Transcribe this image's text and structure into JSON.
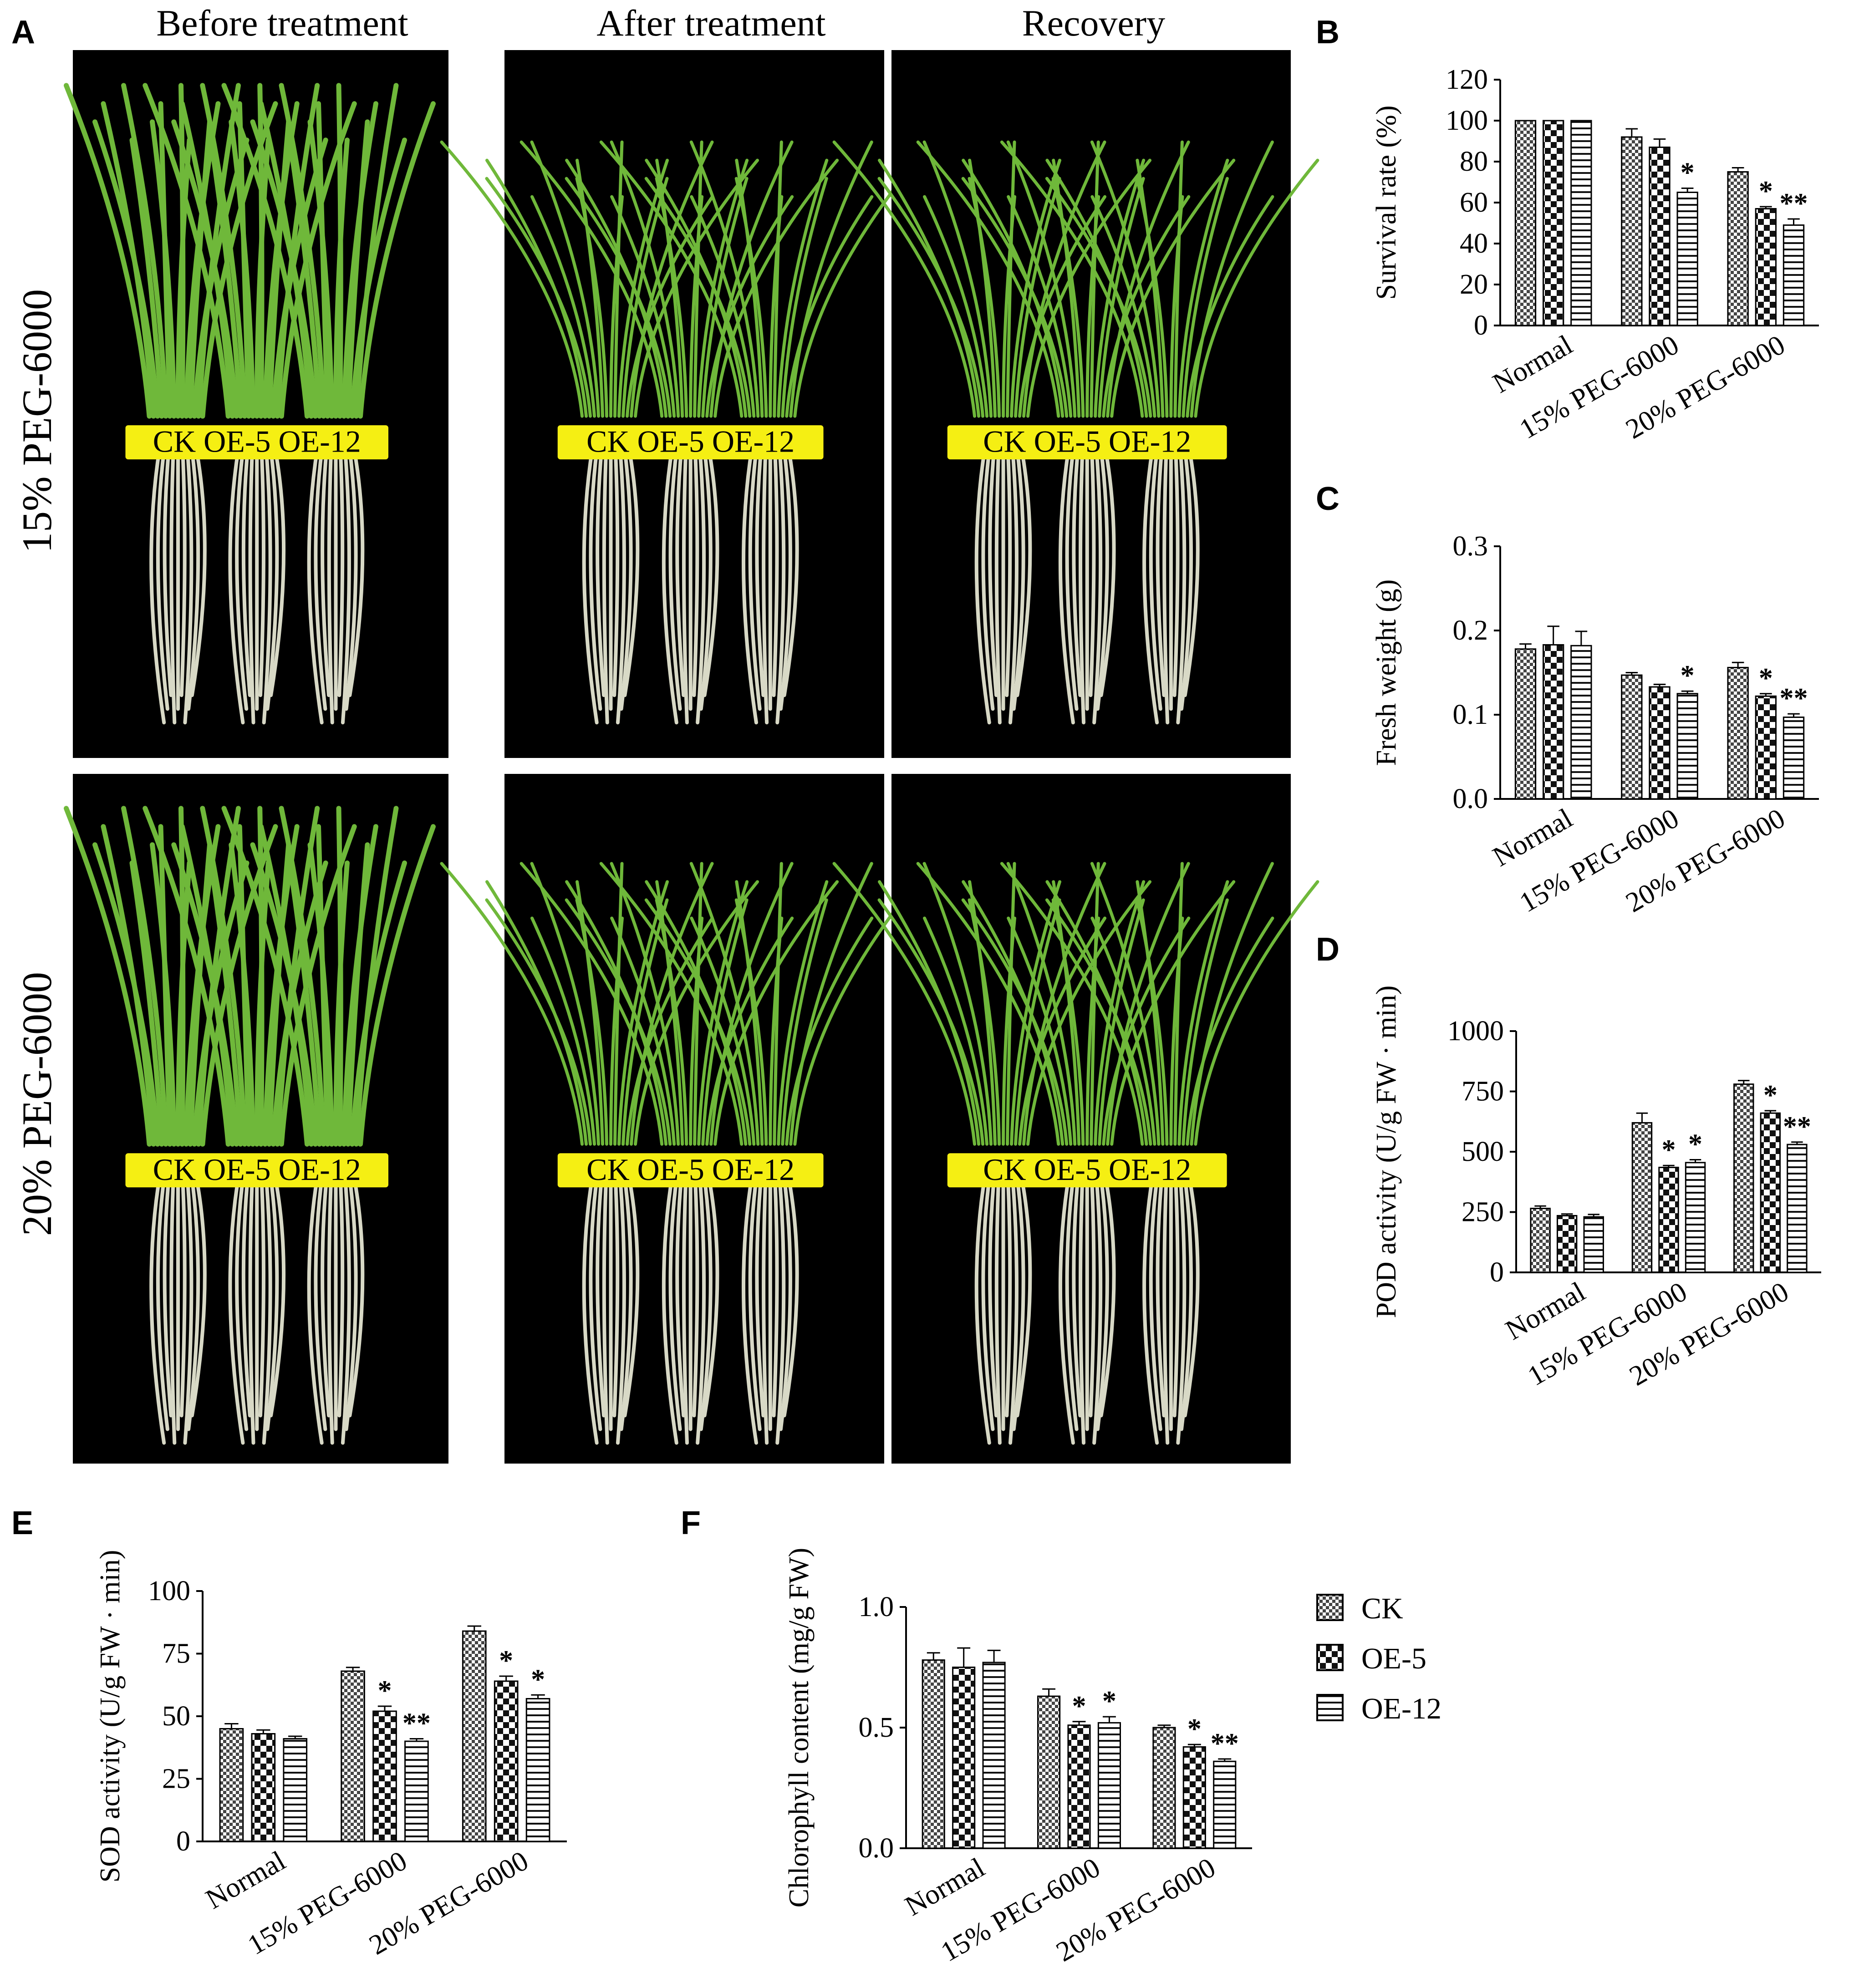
{
  "figure": {
    "panel_letters": [
      "A",
      "B",
      "C",
      "D",
      "E",
      "F"
    ],
    "columns": [
      "Before treatment",
      "After treatment",
      "Recovery"
    ],
    "rows": [
      "15% PEG-6000",
      "20% PEG-6000"
    ],
    "tray_labels": [
      "CK",
      "OE-5",
      "OE-12"
    ]
  },
  "legend": {
    "items": [
      {
        "label": "CK",
        "pattern": "checker-small"
      },
      {
        "label": "OE-5",
        "pattern": "checker-large"
      },
      {
        "label": "OE-12",
        "pattern": "horizontal-lines"
      }
    ]
  },
  "colors": {
    "photo_bg": "#000000",
    "tray": "#f5ef13",
    "leaf": "#6fb83a",
    "root": "#d8d9c6"
  },
  "chart_data": [
    {
      "panel": "B",
      "type": "bar",
      "categories": [
        "Normal",
        "15% PEG-6000",
        "20% PEG-6000"
      ],
      "series": [
        {
          "name": "CK",
          "values": [
            100,
            92,
            75
          ],
          "errors": [
            0,
            4,
            2
          ],
          "sig": [
            "",
            "",
            ""
          ]
        },
        {
          "name": "OE-5",
          "values": [
            100,
            87,
            57
          ],
          "errors": [
            0,
            4,
            1
          ],
          "sig": [
            "",
            "",
            ""
          ]
        },
        {
          "name": "OE-12",
          "values": [
            100,
            65,
            49
          ],
          "errors": [
            0,
            2,
            3
          ],
          "sig": [
            "",
            "*",
            "**"
          ]
        }
      ],
      "extra_sig": [
        [
          "",
          "",
          ""
        ],
        [
          "",
          "",
          ""
        ],
        [
          "",
          "",
          "*"
        ]
      ],
      "ylabel": "Survival rate (%)",
      "ylim": [
        0,
        120
      ],
      "yticks": [
        "0",
        "20",
        "40",
        "60",
        "80",
        "100",
        "120"
      ]
    },
    {
      "panel": "C",
      "type": "bar",
      "categories": [
        "Normal",
        "15% PEG-6000",
        "20% PEG-6000"
      ],
      "series": [
        {
          "name": "CK",
          "values": [
            0.178,
            0.147,
            0.156
          ],
          "errors": [
            0.006,
            0.003,
            0.006
          ],
          "sig": [
            "",
            "",
            ""
          ]
        },
        {
          "name": "OE-5",
          "values": [
            0.183,
            0.133,
            0.122
          ],
          "errors": [
            0.022,
            0.003,
            0.003
          ],
          "sig": [
            "",
            "",
            "*"
          ]
        },
        {
          "name": "OE-12",
          "values": [
            0.182,
            0.125,
            0.097
          ],
          "errors": [
            0.017,
            0.003,
            0.004
          ],
          "sig": [
            "",
            "*",
            "**"
          ]
        }
      ],
      "ylabel": "Fresh weight (g)",
      "ylim": [
        0,
        0.3
      ],
      "yticks": [
        "0.0",
        "0.1",
        "0.2",
        "0.3"
      ]
    },
    {
      "panel": "D",
      "type": "bar",
      "categories": [
        "Normal",
        "15% PEG-6000",
        "20% PEG-6000"
      ],
      "series": [
        {
          "name": "CK",
          "values": [
            265,
            620,
            780
          ],
          "errors": [
            10,
            40,
            15
          ],
          "sig": [
            "",
            "",
            ""
          ]
        },
        {
          "name": "OE-5",
          "values": [
            235,
            435,
            660
          ],
          "errors": [
            7,
            8,
            10
          ],
          "sig": [
            "",
            "*",
            "*"
          ]
        },
        {
          "name": "OE-12",
          "values": [
            230,
            455,
            530
          ],
          "errors": [
            10,
            12,
            10
          ],
          "sig": [
            "",
            "*",
            "**"
          ]
        }
      ],
      "ylabel": "POD activity (U/g FW · min)",
      "ylim": [
        0,
        1000
      ],
      "yticks": [
        "0",
        "250",
        "500",
        "750",
        "1000"
      ]
    },
    {
      "panel": "E",
      "type": "bar",
      "categories": [
        "Normal",
        "15% PEG-6000",
        "20% PEG-6000"
      ],
      "series": [
        {
          "name": "CK",
          "values": [
            45,
            68,
            84
          ],
          "errors": [
            2,
            1.5,
            2
          ],
          "sig": [
            "",
            "",
            ""
          ]
        },
        {
          "name": "OE-5",
          "values": [
            43,
            52,
            64
          ],
          "errors": [
            1.5,
            2,
            2
          ],
          "sig": [
            "",
            "*",
            "*"
          ]
        },
        {
          "name": "OE-12",
          "values": [
            41,
            40,
            57
          ],
          "errors": [
            1,
            1,
            1.5
          ],
          "sig": [
            "",
            "**",
            "*"
          ]
        }
      ],
      "ylabel": "SOD activity (U/g FW · min)",
      "ylim": [
        0,
        100
      ],
      "yticks": [
        "0",
        "25",
        "50",
        "75",
        "100"
      ]
    },
    {
      "panel": "F",
      "type": "bar",
      "categories": [
        "Normal",
        "15% PEG-6000",
        "20% PEG-6000"
      ],
      "series": [
        {
          "name": "CK",
          "values": [
            0.78,
            0.63,
            0.5
          ],
          "errors": [
            0.03,
            0.03,
            0.01
          ],
          "sig": [
            "",
            "",
            ""
          ]
        },
        {
          "name": "OE-5",
          "values": [
            0.75,
            0.51,
            0.42
          ],
          "errors": [
            0.08,
            0.015,
            0.01
          ],
          "sig": [
            "",
            "*",
            "*"
          ]
        },
        {
          "name": "OE-12",
          "values": [
            0.77,
            0.52,
            0.36
          ],
          "errors": [
            0.05,
            0.025,
            0.01
          ],
          "sig": [
            "",
            "*",
            "**"
          ]
        }
      ],
      "ylabel": "Chlorophyll content (mg/g FW)",
      "ylim": [
        0,
        1.0
      ],
      "yticks": [
        "0.0",
        "0.5",
        "1.0"
      ]
    }
  ]
}
